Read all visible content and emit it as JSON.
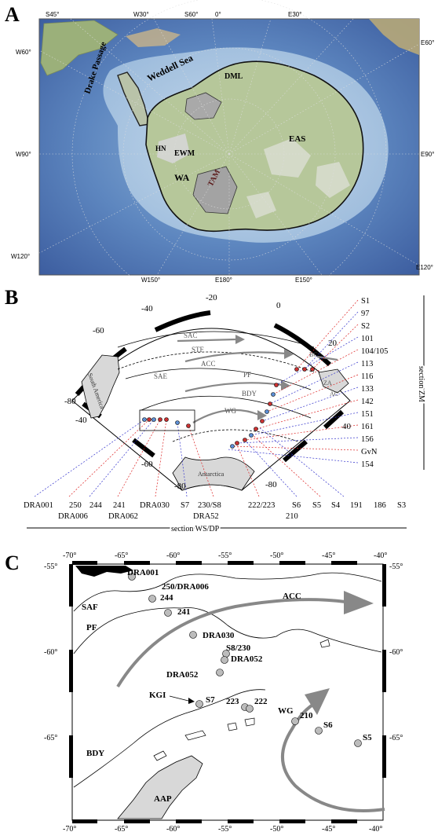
{
  "panel_a": {
    "letter": "A",
    "top_lon": [
      "S45°",
      "W30°",
      "S60°",
      "0°",
      "E30°"
    ],
    "left_lon": [
      "W60°",
      "W90°",
      "W120°"
    ],
    "right_lon": [
      "E60°",
      "E90°",
      "E120°"
    ],
    "bottom_lon": [
      "W150°",
      "E180°",
      "E150°"
    ],
    "features": [
      "Drake Passage",
      "Weddell Sea",
      "DML",
      "EAS",
      "HN",
      "EWM",
      "WA",
      "TAM"
    ]
  },
  "panel_b": {
    "letter": "B",
    "lon_labels": [
      "-80",
      "-60",
      "-40",
      "-20",
      "0",
      "20",
      "40",
      "-40",
      "-60",
      "-80",
      "-80"
    ],
    "fronts": [
      "SAC",
      "STF",
      "ACC",
      "SAE",
      "PF",
      "BDY",
      "WG",
      "BC",
      "ZA",
      "AC",
      "South America",
      "Antarctica"
    ],
    "right_stations": [
      "S1",
      "97",
      "S2",
      "101",
      "104/105",
      "113",
      "116",
      "133",
      "142",
      "151",
      "161",
      "156",
      "GvN",
      "154"
    ],
    "bottom_stations_row1": [
      "DRA001",
      "250",
      "244",
      "241",
      "DRA030",
      "S7",
      "230/S8",
      "222/223",
      "S6",
      "S5",
      "S4",
      "191",
      "186",
      "S3"
    ],
    "bottom_stations_row2": [
      "DRA006",
      "DRA062",
      "DRA52",
      "210"
    ],
    "section_zm": "section ZM",
    "section_ws": "section WS/DP"
  },
  "panel_c": {
    "letter": "C",
    "x_ticks": [
      "-70°",
      "-65°",
      "-60°",
      "-55°",
      "-50°",
      "-45°",
      "-40°"
    ],
    "y_ticks": [
      "-55°",
      "-60°",
      "-65°"
    ],
    "fronts": [
      "SAF",
      "PF",
      "ACC",
      "KGI",
      "BDY",
      "WG",
      "AAP"
    ],
    "stations": [
      "DRA001",
      "250/DRA006",
      "244",
      "241",
      "DRA030",
      "S8/230",
      "DRA052",
      "DRA052",
      "S7",
      "223",
      "222",
      "210",
      "S6",
      "S5"
    ]
  }
}
